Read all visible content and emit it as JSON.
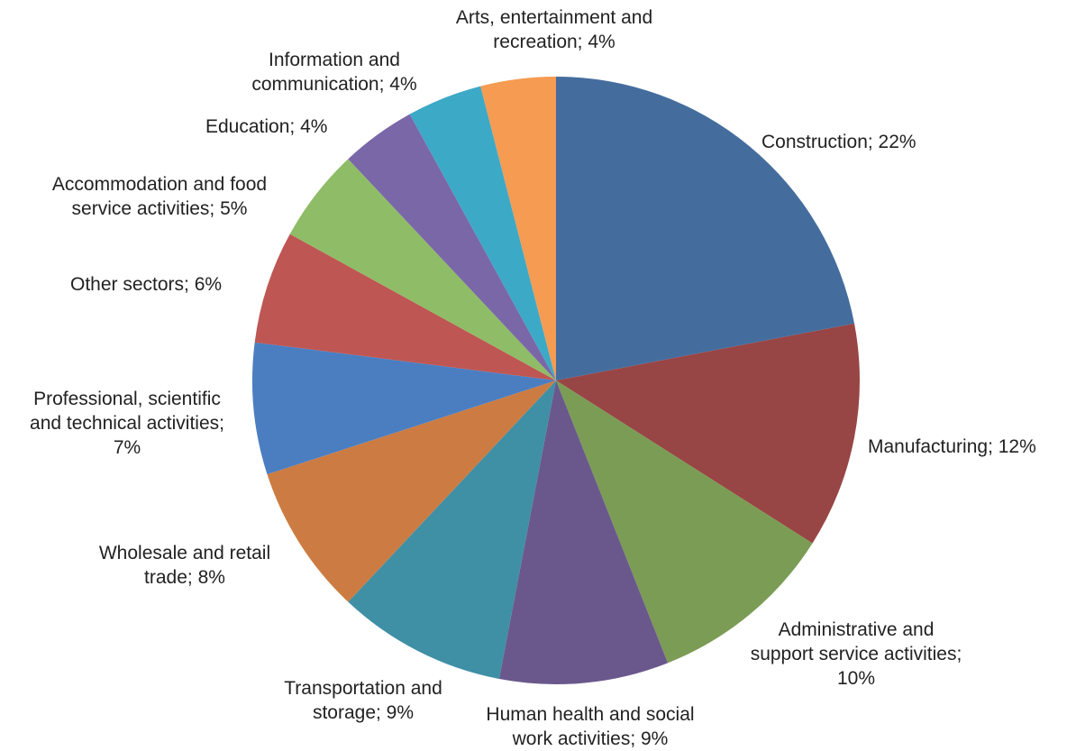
{
  "chart_data": {
    "type": "pie",
    "slices": [
      {
        "label": "Construction",
        "value": 22,
        "text": "Construction; 22%",
        "color": "#446d9e"
      },
      {
        "label": "Manufacturing",
        "value": 12,
        "text": "Manufacturing; 12%",
        "color": "#984545"
      },
      {
        "label": "Administrative and support service activities",
        "value": 10,
        "text": "Administrative and support service activities; 10%",
        "color": "#7b9c55"
      },
      {
        "label": "Human health and social work activities",
        "value": 9,
        "text": "Human health and social work activities; 9%",
        "color": "#6a588c"
      },
      {
        "label": "Transportation and storage",
        "value": 9,
        "text": "Transportation and storage; 9%",
        "color": "#3f8fa5"
      },
      {
        "label": "Wholesale and retail trade",
        "value": 8,
        "text": "Wholesale and retail trade; 8%",
        "color": "#cc7c42"
      },
      {
        "label": "Professional, scientific and technical activities",
        "value": 7,
        "text": "Professional, scientific and technical activities; 7%",
        "color": "#4b7ec1"
      },
      {
        "label": "Other sectors",
        "value": 6,
        "text": "Other sectors; 6%",
        "color": "#be5654"
      },
      {
        "label": "Accommodation and food service activities",
        "value": 5,
        "text": "Accommodation and food service activities; 5%",
        "color": "#8fbc66"
      },
      {
        "label": "Education",
        "value": 4,
        "text": "Education; 4%",
        "color": "#7a67a8"
      },
      {
        "label": "Information and communication",
        "value": 4,
        "text": "Information and communication; 4%",
        "color": "#3ca9c7"
      },
      {
        "label": "Arts, entertainment and recreation",
        "value": 4,
        "text": "Arts, entertainment and recreation; 4%",
        "color": "#f59b52"
      }
    ]
  }
}
